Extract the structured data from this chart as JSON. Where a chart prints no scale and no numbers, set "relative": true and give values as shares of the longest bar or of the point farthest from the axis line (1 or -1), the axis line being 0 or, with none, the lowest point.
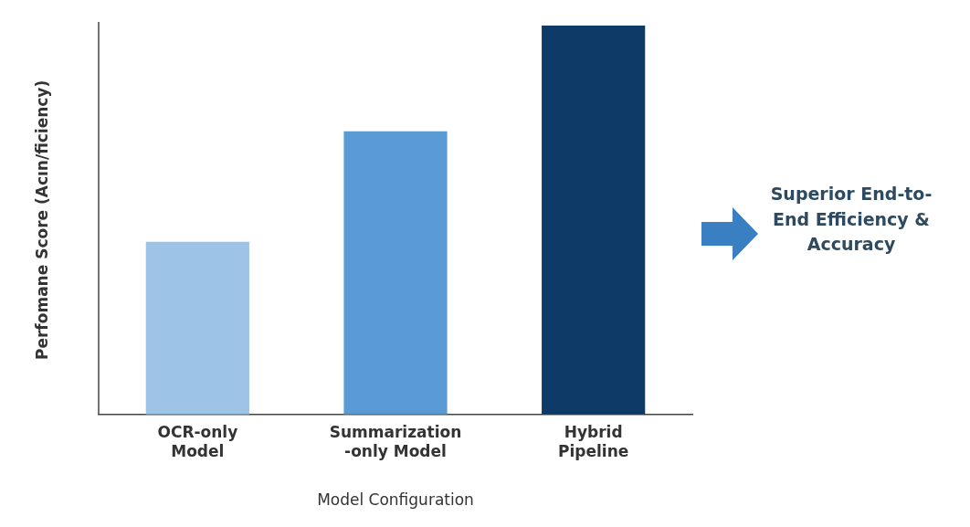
{
  "chart_data": {
    "type": "bar",
    "relative": true,
    "xlabel": "Model Configuration",
    "ylabel": "Perfomane Score (Acın/ficiency)",
    "categories": [
      "OCR-only Model",
      "Summarization -only Model",
      "Hybrid Pipeline"
    ],
    "values": [
      0.444,
      0.728,
      1
    ],
    "colors": [
      "#9dc3e6",
      "#5b9bd5",
      "#0e3a68"
    ],
    "annotations": [
      "Superior End-to-End Efficiency & Accuracy"
    ],
    "grid": false,
    "legend": false
  }
}
